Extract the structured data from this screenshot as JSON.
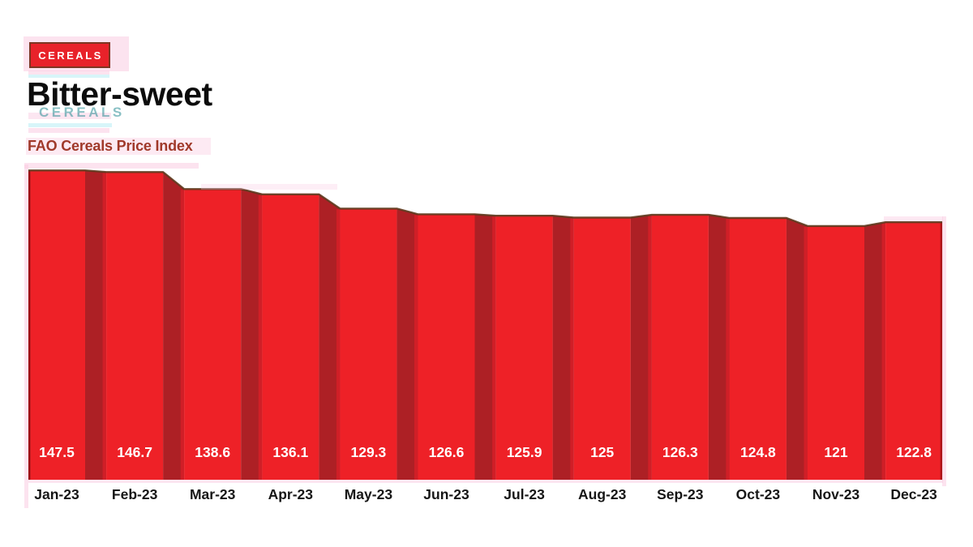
{
  "page": {
    "background": "#ffffff"
  },
  "header": {
    "badge": {
      "label": "CEREALS",
      "bg": "#e8222a",
      "border": "#7d3522",
      "text_color": "#ffffff"
    },
    "title": "Bitter-sweet",
    "ghost_label": "CEREALS",
    "subtitle": "FAO Cereals Price Index",
    "subtitle_color": "#a0392a"
  },
  "chart_data": {
    "type": "bar",
    "title": "Bitter-sweet",
    "subtitle": "FAO Cereals Price Index",
    "categories": [
      "Jan-23",
      "Feb-23",
      "Mar-23",
      "Apr-23",
      "May-23",
      "Jun-23",
      "Jul-23",
      "Aug-23",
      "Sep-23",
      "Oct-23",
      "Nov-23",
      "Dec-23"
    ],
    "values": [
      147.5,
      146.7,
      138.6,
      136.1,
      129.3,
      126.6,
      125.9,
      125,
      126.3,
      124.8,
      121,
      122.8
    ],
    "value_labels": [
      "147.5",
      "146.7",
      "138.6",
      "136.1",
      "129.3",
      "126.6",
      "125.9",
      "125",
      "126.3",
      "124.8",
      "121",
      "122.8"
    ],
    "xlabel": "",
    "ylabel": "",
    "ylim": [
      0,
      150
    ],
    "grid": false,
    "legend": false,
    "value_label_position": "inside-bottom",
    "bar_gap_style": "sloped-ribbon",
    "colors": {
      "bar_fill": "#ee2127",
      "connector_fill": "#ad2025",
      "connector_edge": "#d01f27",
      "outline": "#5e3a1e",
      "value_label_color": "#ffffff",
      "axis_label_color": "#161616"
    }
  }
}
